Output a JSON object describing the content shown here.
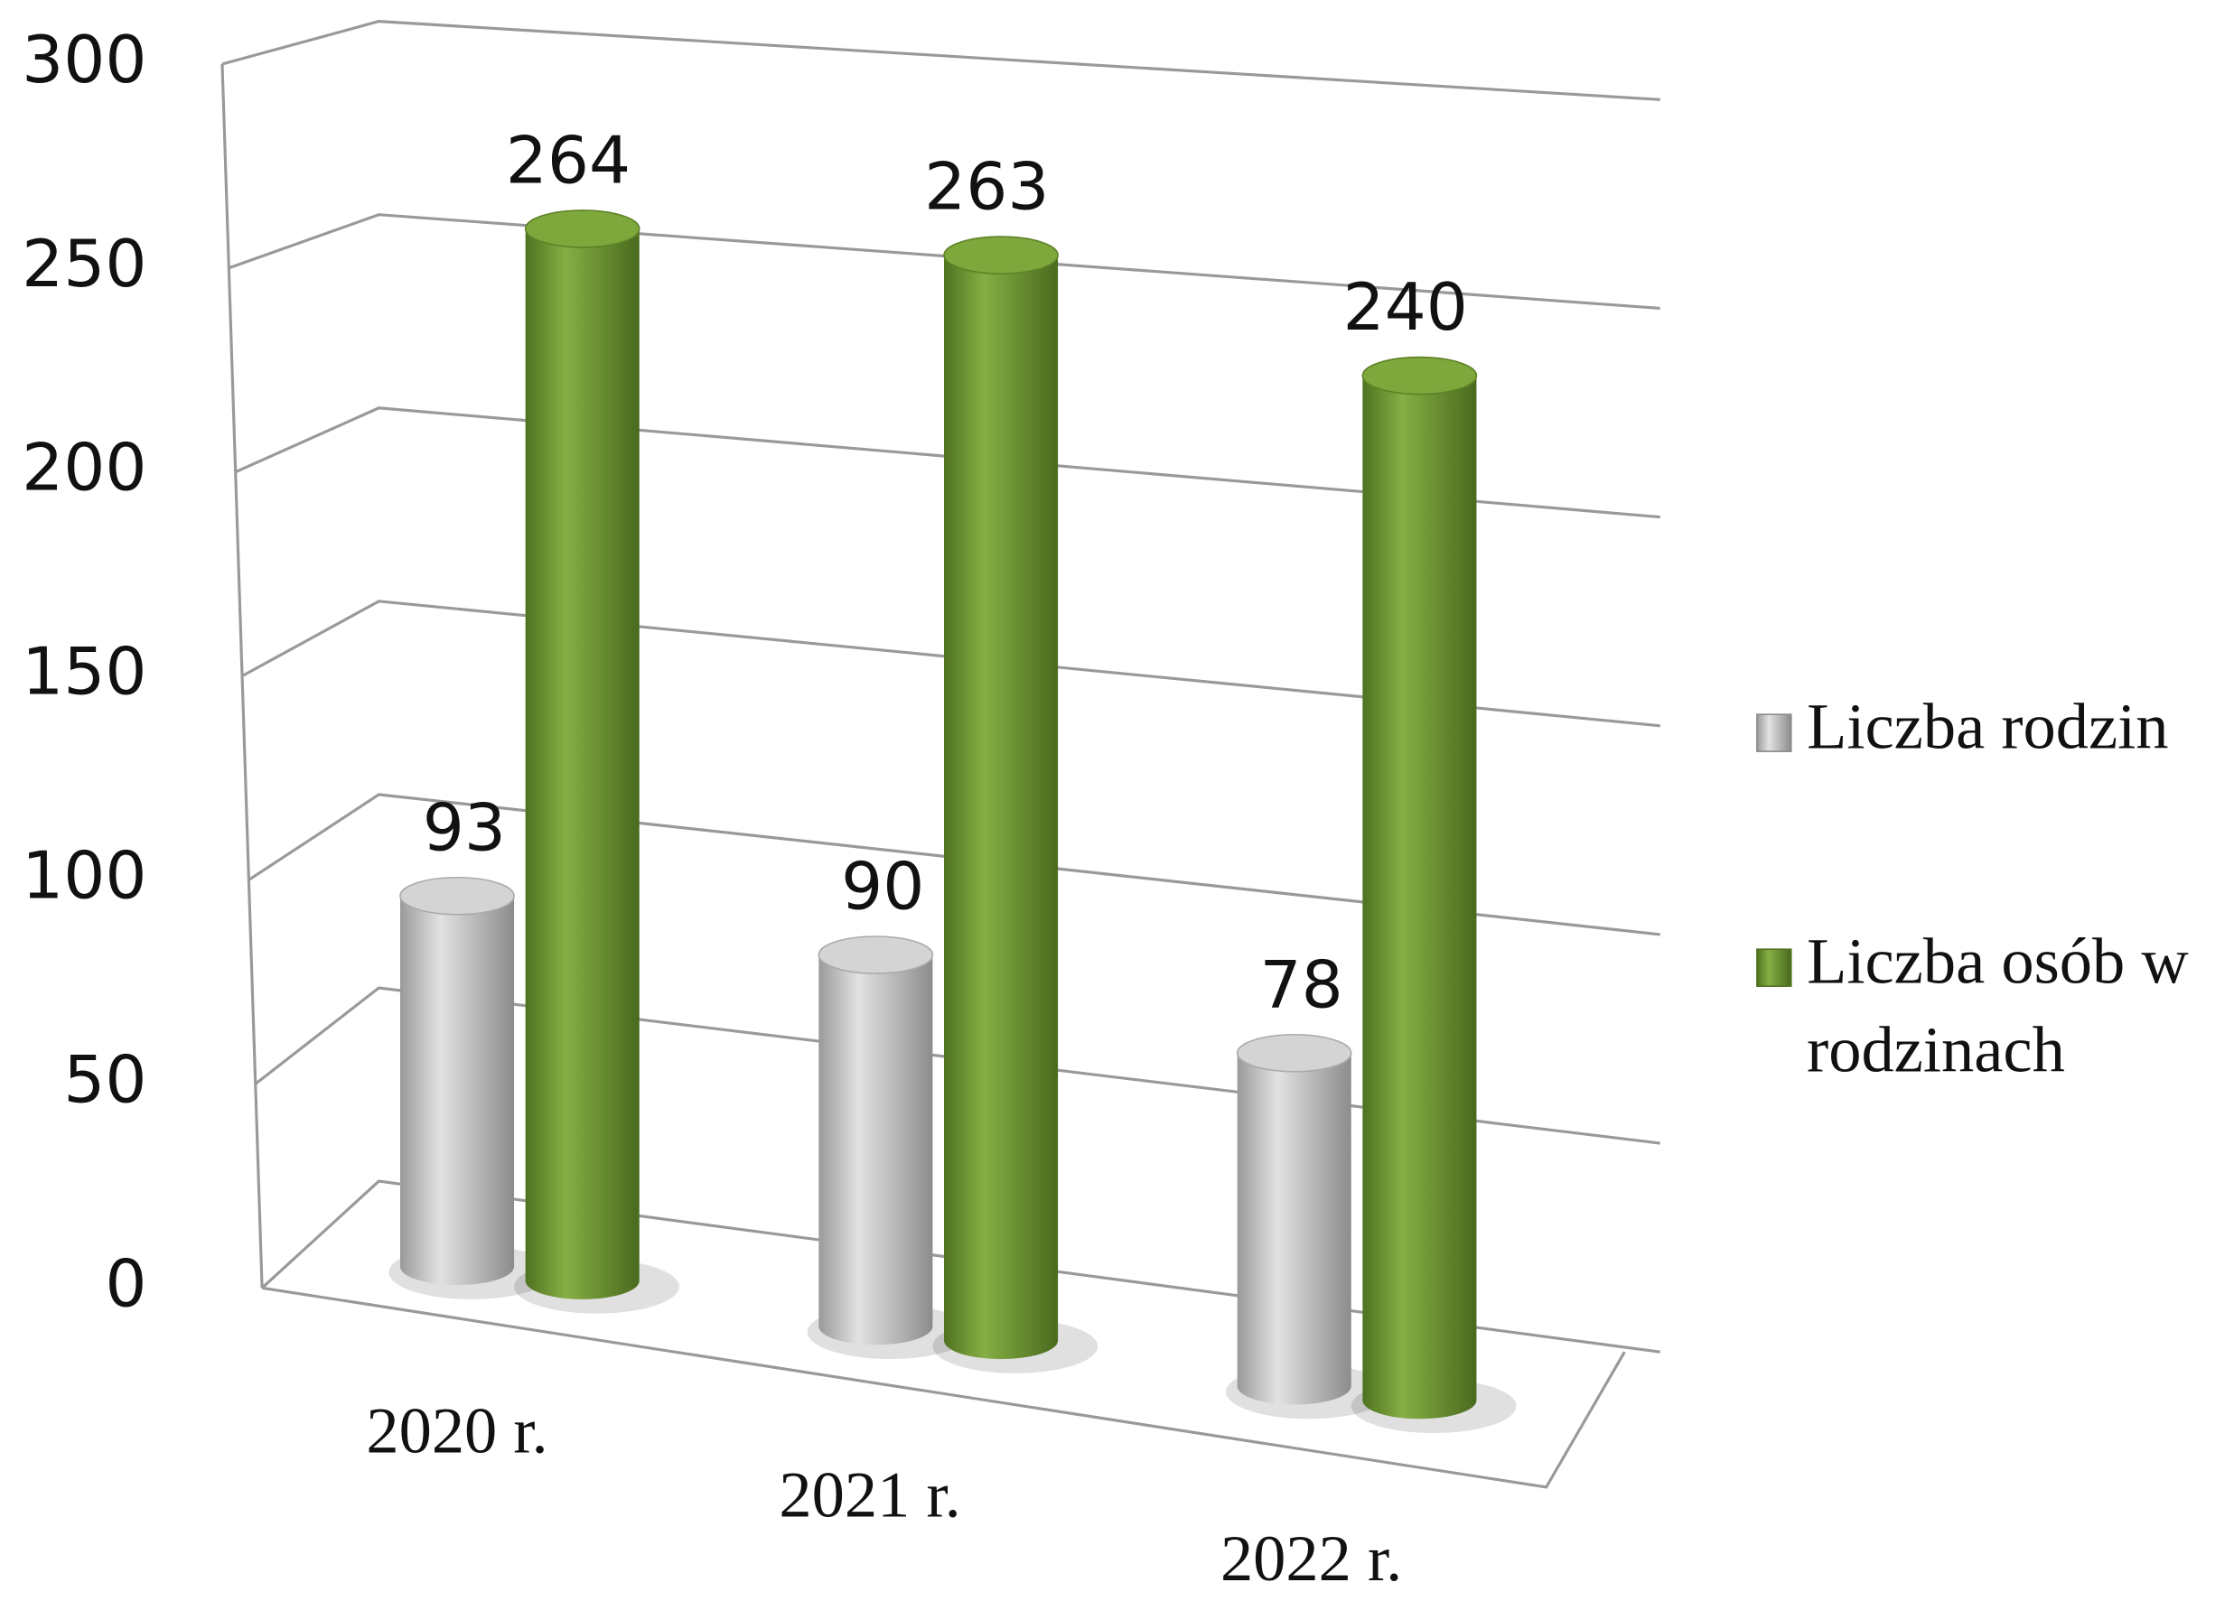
{
  "chart_data": {
    "type": "bar3d",
    "categories": [
      "2020 r.",
      "2021 r.",
      "2022 r."
    ],
    "series": [
      {
        "name": "Liczba rodzin",
        "color": "#c0c0c0",
        "values": [
          93,
          90,
          78
        ]
      },
      {
        "name": "Liczba osób w rodzinach",
        "color": "#6f9a2e",
        "values": [
          264,
          263,
          240
        ]
      }
    ],
    "ylim": [
      0,
      300
    ],
    "yticks": [
      0,
      50,
      100,
      150,
      200,
      250,
      300
    ],
    "grid": true,
    "legend": "right"
  }
}
